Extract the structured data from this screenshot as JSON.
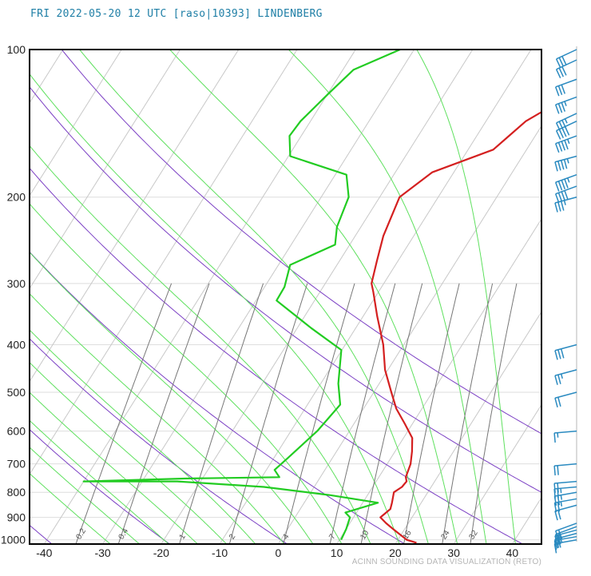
{
  "header": {
    "title": "FRI 2022-05-20 12 UTC [raso|10393] LINDENBERG",
    "credit": "ACINN SOUNDING DATA VISUALIZATION (RETO)"
  },
  "colors": {
    "temperature": "#d42020",
    "dewpoint": "#22cc22",
    "dry_adiabat": "#7b3fc4",
    "moist_adiabat": "#5ee05e",
    "mixing_ratio": "#777777",
    "isotherm": "#c8c8c8",
    "wind_barbs": "#2a8ac0",
    "frame": "#000000"
  },
  "chart_data": {
    "type": "line",
    "diagram": "skew-T log-p",
    "x_axis": {
      "ticks": [
        -40,
        -30,
        -20,
        -10,
        0,
        10,
        20,
        30,
        40
      ],
      "range": [
        -42.5,
        45
      ]
    },
    "y_axis": {
      "scale": "log",
      "range": [
        1020,
        100
      ],
      "ticks": [
        100,
        200,
        300,
        400,
        500,
        600,
        700,
        800,
        900,
        1000
      ]
    },
    "grid": true,
    "series": [
      {
        "key": "temperature",
        "values": [
          [
            1014,
            23.5
          ],
          [
            1000,
            21.5
          ],
          [
            950,
            18.0
          ],
          [
            925,
            16.2
          ],
          [
            900,
            14.6
          ],
          [
            865,
            15.4
          ],
          [
            840,
            15.0
          ],
          [
            800,
            14.2
          ],
          [
            780,
            15.0
          ],
          [
            760,
            15.2
          ],
          [
            745,
            14.6
          ],
          [
            700,
            14.0
          ],
          [
            660,
            12.9
          ],
          [
            620,
            11.5
          ],
          [
            580,
            8.7
          ],
          [
            540,
            5.6
          ],
          [
            500,
            3.0
          ],
          [
            450,
            -0.5
          ],
          [
            400,
            -3.5
          ],
          [
            350,
            -7.6
          ],
          [
            312,
            -10.9
          ],
          [
            300,
            -12.1
          ],
          [
            270,
            -13.6
          ],
          [
            240,
            -15.2
          ],
          [
            200,
            -16.6
          ],
          [
            178,
            -13.7
          ],
          [
            160,
            -5.7
          ],
          [
            140,
            -3.2
          ],
          [
            120,
            2.9
          ],
          [
            100,
            4.0
          ]
        ]
      },
      {
        "key": "dewpoint",
        "values": [
          [
            1000,
            10.3
          ],
          [
            950,
            10.0
          ],
          [
            900,
            9.4
          ],
          [
            880,
            8.1
          ],
          [
            840,
            12.6
          ],
          [
            810,
            3.4
          ],
          [
            780,
            -8.6
          ],
          [
            760,
            -24.0
          ],
          [
            760,
            -40.0
          ],
          [
            750,
            -23.0
          ],
          [
            745,
            -7.0
          ],
          [
            720,
            -8.6
          ],
          [
            680,
            -7.6
          ],
          [
            600,
            -5.5
          ],
          [
            530,
            -4.4
          ],
          [
            480,
            -7.0
          ],
          [
            410,
            -10.1
          ],
          [
            370,
            -17.6
          ],
          [
            325,
            -26.5
          ],
          [
            305,
            -26.6
          ],
          [
            275,
            -28.0
          ],
          [
            250,
            -22.5
          ],
          [
            230,
            -24.1
          ],
          [
            200,
            -25.3
          ],
          [
            180,
            -28.1
          ],
          [
            165,
            -39.7
          ],
          [
            150,
            -42.0
          ],
          [
            140,
            -41.7
          ],
          [
            123,
            -39.9
          ],
          [
            110,
            -38.2
          ],
          [
            100,
            -32.4
          ]
        ]
      }
    ],
    "mixing_ratio_lines": [
      {
        "label": "0.2",
        "w": 0.2
      },
      {
        "label": "0.4",
        "w": 0.4
      },
      {
        "label": "1",
        "w": 1
      },
      {
        "label": "2",
        "w": 2
      },
      {
        "label": "4",
        "w": 4
      },
      {
        "label": "7",
        "w": 7
      },
      {
        "label": "10",
        "w": 10
      },
      {
        "label": "16",
        "w": 16
      },
      {
        "label": "24",
        "w": 24
      },
      {
        "label": "32",
        "w": 32
      }
    ],
    "dry_adiabats_theta_C": [
      -40,
      -20,
      0,
      20,
      40,
      60,
      80
    ],
    "moist_adiabats_C": [
      -30,
      -25,
      -20,
      -15,
      -10,
      -5,
      0,
      5,
      10,
      15,
      20,
      25,
      30,
      35,
      40
    ],
    "wind_barbs": [
      {
        "p": 1000,
        "dir": 260,
        "kt": 15
      },
      {
        "p": 985,
        "dir": 260,
        "kt": 15
      },
      {
        "p": 970,
        "dir": 255,
        "kt": 20
      },
      {
        "p": 955,
        "dir": 255,
        "kt": 20
      },
      {
        "p": 940,
        "dir": 250,
        "kt": 20
      },
      {
        "p": 925,
        "dir": 250,
        "kt": 20
      },
      {
        "p": 850,
        "dir": 255,
        "kt": 20
      },
      {
        "p": 825,
        "dir": 260,
        "kt": 25
      },
      {
        "p": 800,
        "dir": 260,
        "kt": 25
      },
      {
        "p": 780,
        "dir": 265,
        "kt": 25
      },
      {
        "p": 760,
        "dir": 265,
        "kt": 20
      },
      {
        "p": 700,
        "dir": 265,
        "kt": 20
      },
      {
        "p": 600,
        "dir": 265,
        "kt": 15
      },
      {
        "p": 500,
        "dir": 255,
        "kt": 20
      },
      {
        "p": 450,
        "dir": 255,
        "kt": 25
      },
      {
        "p": 400,
        "dir": 255,
        "kt": 30
      },
      {
        "p": 200,
        "dir": 255,
        "kt": 35
      },
      {
        "p": 190,
        "dir": 250,
        "kt": 40
      },
      {
        "p": 180,
        "dir": 250,
        "kt": 45
      },
      {
        "p": 165,
        "dir": 255,
        "kt": 45
      },
      {
        "p": 150,
        "dir": 250,
        "kt": 45
      },
      {
        "p": 140,
        "dir": 245,
        "kt": 40
      },
      {
        "p": 135,
        "dir": 245,
        "kt": 35
      },
      {
        "p": 125,
        "dir": 250,
        "kt": 35
      },
      {
        "p": 115,
        "dir": 250,
        "kt": 30
      },
      {
        "p": 105,
        "dir": 245,
        "kt": 30
      },
      {
        "p": 100,
        "dir": 245,
        "kt": 30
      }
    ]
  }
}
